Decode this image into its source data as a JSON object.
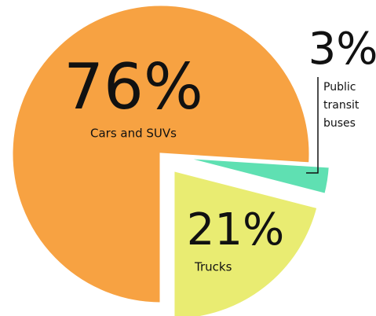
{
  "chart_data": {
    "type": "pie",
    "categories": [
      "Cars and SUVs",
      "Public transit buses",
      "Trucks"
    ],
    "values": [
      76,
      3,
      21
    ],
    "value_labels": [
      "76%",
      "3%",
      "21%"
    ],
    "colors": [
      "#f7a242",
      "#5fe0b2",
      "#e9ec72"
    ],
    "exploded": [
      false,
      true,
      true
    ]
  }
}
